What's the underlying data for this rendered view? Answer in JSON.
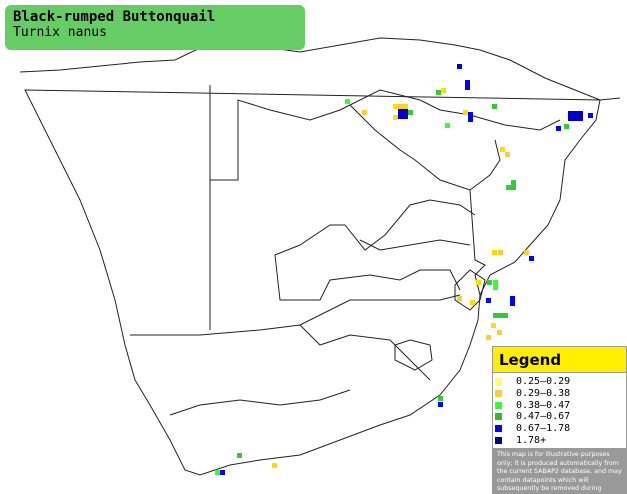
{
  "header": {
    "title": "Black-rumped Buttonquail",
    "subtitle": "Turnix nanus"
  },
  "legend": {
    "title": "Legend",
    "items": [
      {
        "label": "0.25–0.29",
        "color": "#ffff66"
      },
      {
        "label": "0.29–0.38",
        "color": "#ffcc33"
      },
      {
        "label": "0.38–0.47",
        "color": "#33ff33"
      },
      {
        "label": "0.47–0.67",
        "color": "#33bb33"
      },
      {
        "label": "0.67–1.78",
        "color": "#0000ff"
      },
      {
        "label": "1.78+",
        "color": "#000099"
      }
    ],
    "disclaimer": "This map is for illustrative purposes only; it is produced automatically from the current SABAP2 database, and may contain datapoints which will subsequently be removed during checking operations."
  }
}
